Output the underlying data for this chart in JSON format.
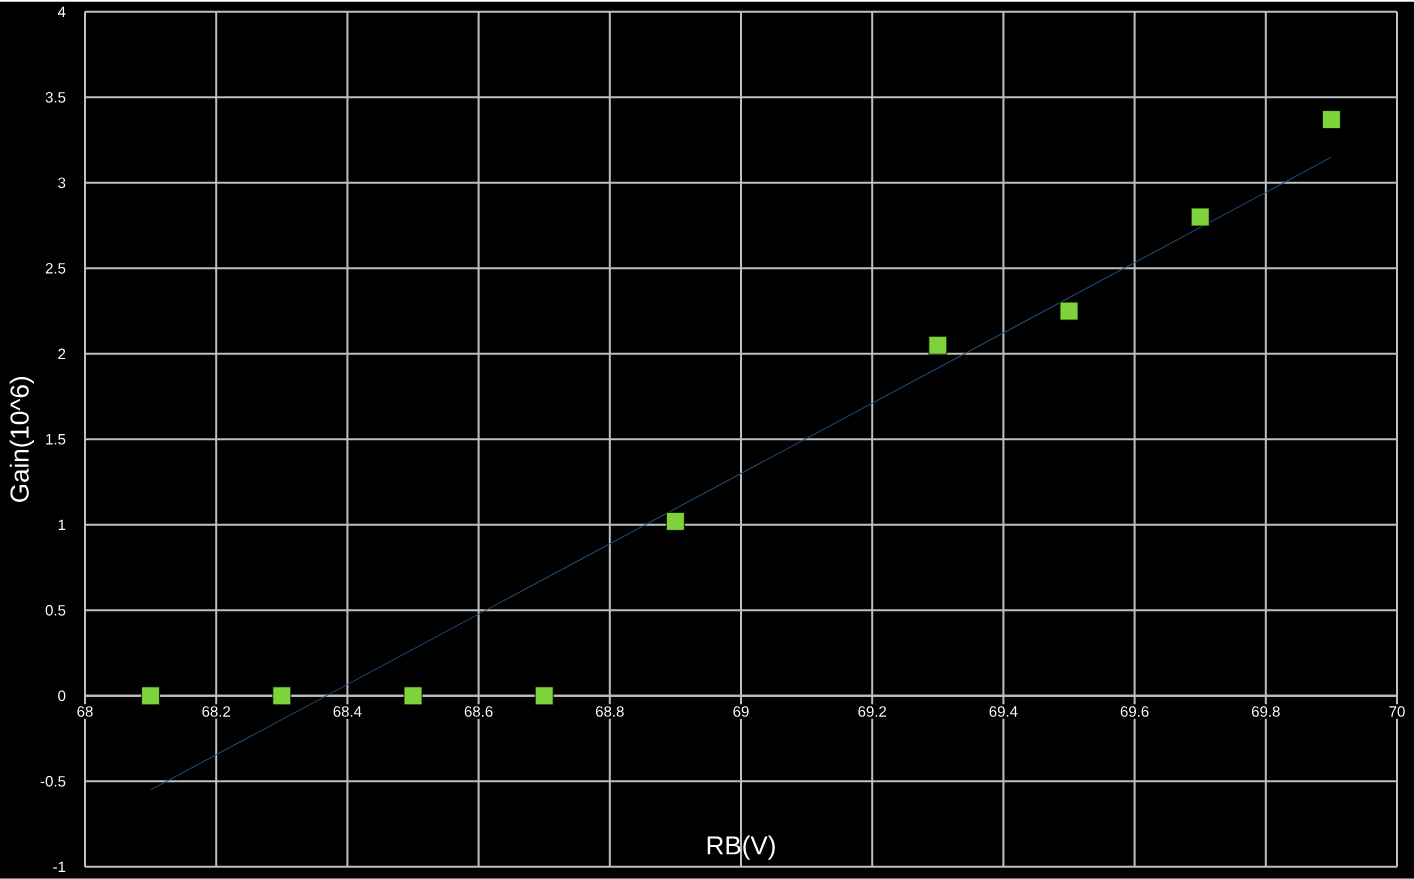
{
  "chart_data": {
    "type": "scatter",
    "xlabel": "RB(V)",
    "ylabel": "Gain(10^6)",
    "series": [
      {
        "color": "#7ed33a",
        "marker": "square",
        "x": [
          68.1,
          68.3,
          68.5,
          68.7,
          68.9,
          69.3,
          69.5,
          69.7,
          69.9
        ],
        "values": [
          0,
          0,
          0,
          0,
          1.02,
          2.05,
          2.25,
          2.8,
          3.37
        ]
      },
      {
        "type": "line",
        "color": "#1f4e79",
        "marker": "none",
        "x": [
          68.1,
          69.9
        ],
        "values": [
          -0.55,
          3.15
        ]
      }
    ],
    "xlim": [
      68,
      70
    ],
    "xticks": [
      68,
      68.2,
      68.4,
      68.6,
      68.8,
      69,
      69.2,
      69.4,
      69.6,
      69.8,
      70
    ],
    "ylim": [
      -1,
      4
    ],
    "yticks": [
      -1,
      -0.5,
      0,
      0.5,
      1,
      1.5,
      2,
      2.5,
      3,
      3.5,
      4
    ],
    "grid": true
  }
}
